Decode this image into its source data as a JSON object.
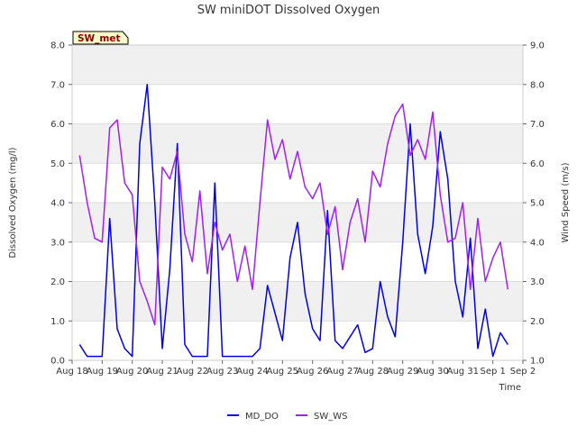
{
  "chart_data": {
    "type": "line",
    "title": "SW miniDOT Dissolved Oxygen",
    "badge": "SW_met",
    "xlabel": "Time",
    "ylabel": "Dissolved Oxygen (mg/l)",
    "y2label": "Wind Speed (m/s)",
    "x_ticks": [
      "Aug 18",
      "Aug 19",
      "Aug 20",
      "Aug 21",
      "Aug 22",
      "Aug 23",
      "Aug 24",
      "Aug 25",
      "Aug 26",
      "Aug 27",
      "Aug 28",
      "Aug 29",
      "Aug 30",
      "Aug 31",
      "Sep 1",
      "Sep 2"
    ],
    "ylim": [
      0,
      8
    ],
    "y_ticks": [
      "0.0",
      "1.0",
      "2.0",
      "3.0",
      "4.0",
      "5.0",
      "6.0",
      "7.0",
      "8.0"
    ],
    "y2lim": [
      1,
      9
    ],
    "y2_ticks": [
      "1.0",
      "2.0",
      "3.0",
      "4.0",
      "5.0",
      "6.0",
      "7.0",
      "8.0",
      "9.0"
    ],
    "grid": true,
    "legend_position": "bottom",
    "series": [
      {
        "name": "MD_DO",
        "axis": "left",
        "color": "#0000e6",
        "x": [
          "Aug 18 06:00",
          "Aug 18 12:00",
          "Aug 18 18:00",
          "Aug 19 00:00",
          "Aug 19 06:00",
          "Aug 19 12:00",
          "Aug 19 18:00",
          "Aug 20 00:00",
          "Aug 20 06:00",
          "Aug 20 12:00",
          "Aug 20 18:00",
          "Aug 21 00:00",
          "Aug 21 06:00",
          "Aug 21 12:00",
          "Aug 21 18:00",
          "Aug 22 00:00",
          "Aug 22 06:00",
          "Aug 22 12:00",
          "Aug 22 18:00",
          "Aug 23 00:00",
          "Aug 23 06:00",
          "Aug 23 12:00",
          "Aug 23 18:00",
          "Aug 24 00:00",
          "Aug 24 06:00",
          "Aug 24 12:00",
          "Aug 24 18:00",
          "Aug 25 00:00",
          "Aug 25 06:00",
          "Aug 25 12:00",
          "Aug 25 18:00",
          "Aug 26 00:00",
          "Aug 26 06:00",
          "Aug 26 12:00",
          "Aug 26 18:00",
          "Aug 27 00:00",
          "Aug 27 06:00",
          "Aug 27 12:00",
          "Aug 27 18:00",
          "Aug 28 00:00",
          "Aug 28 06:00",
          "Aug 28 12:00",
          "Aug 28 18:00",
          "Aug 29 00:00",
          "Aug 29 06:00",
          "Aug 29 12:00",
          "Aug 29 18:00",
          "Aug 30 00:00",
          "Aug 30 06:00",
          "Aug 30 12:00",
          "Aug 30 18:00",
          "Aug 31 00:00",
          "Aug 31 06:00",
          "Aug 31 12:00",
          "Aug 31 18:00",
          "Sep 1 00:00",
          "Sep 1 06:00",
          "Sep 1 12:00"
        ],
        "values": [
          0.4,
          0.1,
          0.1,
          0.1,
          3.6,
          0.8,
          0.3,
          0.1,
          5.5,
          7.0,
          4.0,
          0.3,
          2.3,
          5.5,
          0.4,
          0.1,
          0.1,
          0.1,
          4.5,
          0.1,
          0.1,
          0.1,
          0.1,
          0.1,
          0.3,
          1.9,
          1.2,
          0.5,
          2.6,
          3.5,
          1.7,
          0.8,
          0.5,
          3.8,
          0.5,
          0.3,
          0.6,
          0.9,
          0.2,
          0.3,
          2.0,
          1.1,
          0.6,
          3.0,
          6.0,
          3.2,
          2.2,
          3.4,
          5.8,
          4.6,
          2.0,
          1.1,
          3.1,
          0.3,
          1.3,
          0.1,
          0.7,
          0.4
        ]
      },
      {
        "name": "SW_WS",
        "axis": "right",
        "color": "#a020f0",
        "x": [
          "Aug 18 06:00",
          "Aug 18 12:00",
          "Aug 18 18:00",
          "Aug 19 00:00",
          "Aug 19 06:00",
          "Aug 19 12:00",
          "Aug 19 18:00",
          "Aug 20 00:00",
          "Aug 20 06:00",
          "Aug 20 12:00",
          "Aug 20 18:00",
          "Aug 21 00:00",
          "Aug 21 06:00",
          "Aug 21 12:00",
          "Aug 21 18:00",
          "Aug 22 00:00",
          "Aug 22 06:00",
          "Aug 22 12:00",
          "Aug 22 18:00",
          "Aug 23 00:00",
          "Aug 23 06:00",
          "Aug 23 12:00",
          "Aug 23 18:00",
          "Aug 24 00:00",
          "Aug 24 06:00",
          "Aug 24 12:00",
          "Aug 24 18:00",
          "Aug 25 00:00",
          "Aug 25 06:00",
          "Aug 25 12:00",
          "Aug 25 18:00",
          "Aug 26 00:00",
          "Aug 26 06:00",
          "Aug 26 12:00",
          "Aug 26 18:00",
          "Aug 27 00:00",
          "Aug 27 06:00",
          "Aug 27 12:00",
          "Aug 27 18:00",
          "Aug 28 00:00",
          "Aug 28 06:00",
          "Aug 28 12:00",
          "Aug 28 18:00",
          "Aug 29 00:00",
          "Aug 29 06:00",
          "Aug 29 12:00",
          "Aug 29 18:00",
          "Aug 30 00:00",
          "Aug 30 06:00",
          "Aug 30 12:00",
          "Aug 30 18:00",
          "Aug 31 00:00",
          "Aug 31 06:00",
          "Aug 31 12:00",
          "Aug 31 18:00",
          "Sep 1 00:00",
          "Sep 1 06:00",
          "Sep 1 12:00"
        ],
        "values": [
          6.2,
          5.0,
          4.1,
          4.0,
          6.9,
          7.1,
          5.5,
          5.2,
          3.0,
          2.5,
          1.9,
          5.9,
          5.6,
          6.3,
          4.2,
          3.5,
          5.3,
          3.2,
          4.5,
          3.8,
          4.2,
          3.0,
          3.9,
          2.8,
          5.0,
          7.1,
          6.1,
          6.6,
          5.6,
          6.3,
          5.4,
          5.1,
          5.5,
          4.2,
          4.9,
          3.3,
          4.5,
          5.1,
          4.0,
          5.8,
          5.4,
          6.5,
          7.2,
          7.5,
          6.2,
          6.6,
          6.1,
          7.3,
          5.2,
          4.0,
          4.1,
          5.0,
          2.8,
          4.6,
          3.0,
          3.6,
          4.0,
          2.8
        ]
      }
    ]
  }
}
